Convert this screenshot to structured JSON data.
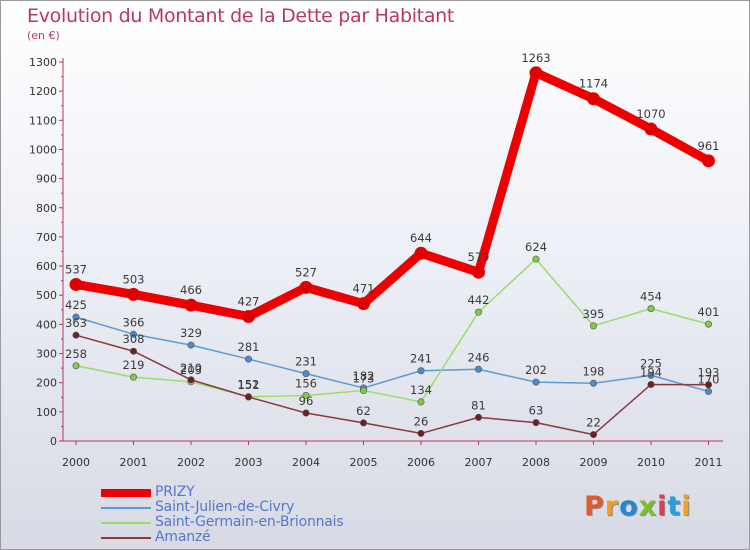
{
  "title": "Evolution du Montant de la Dette par Habitant",
  "subtitle": "(en €)",
  "logo": {
    "text": "Proxiti",
    "letter_colors": [
      "#e05a2b",
      "#f0a020",
      "#1f8ad0",
      "#7cbf2e",
      "#e03a55",
      "#2a9fd6",
      "#f0a020"
    ]
  },
  "chart_data": {
    "type": "line",
    "title": "Evolution du Montant de la Dette par Habitant",
    "subtitle": "(en €)",
    "xlabel": "",
    "ylabel": "",
    "categories": [
      "2000",
      "2001",
      "2002",
      "2003",
      "2004",
      "2005",
      "2006",
      "2007",
      "2008",
      "2009",
      "2010",
      "2011"
    ],
    "ylim": [
      0,
      1300
    ],
    "yticks": [
      "0",
      "100",
      "200",
      "300",
      "400",
      "500",
      "600",
      "700",
      "800",
      "900",
      "1000",
      "1100",
      "1200",
      "1300"
    ],
    "grid": false,
    "legend_position": "bottom-left",
    "series": [
      {
        "name": "PRIZY",
        "color": "#ee0000",
        "marker_color": "#dd0000",
        "emphasis": true,
        "values": [
          537,
          503,
          466,
          427,
          527,
          471,
          644,
          579,
          1263,
          1174,
          1070,
          961
        ],
        "labels": [
          "537",
          "503",
          "466",
          "427",
          "527",
          "471",
          "644",
          "579",
          "1263",
          "1174",
          "1070",
          "961"
        ]
      },
      {
        "name": "Saint-Julien-de-Civry",
        "color": "#5b9bd5",
        "marker_color": "#4a8ccf",
        "emphasis": false,
        "values": [
          425,
          366,
          329,
          281,
          231,
          182,
          241,
          246,
          202,
          198,
          225,
          170
        ],
        "labels": [
          "425",
          "366",
          "329",
          "281",
          "231",
          "182",
          "241",
          "246",
          "202",
          "198",
          "225",
          "170"
        ]
      },
      {
        "name": "Saint-Germain-en-Brionnais",
        "color": "#99dd66",
        "marker_color": "#7fcc44",
        "emphasis": false,
        "values": [
          258,
          219,
          203,
          152,
          156,
          173,
          134,
          442,
          624,
          395,
          454,
          401
        ],
        "labels": [
          "258",
          "219",
          "203",
          "152",
          "156",
          "173",
          "134",
          "442",
          "624",
          "395",
          "454",
          "401"
        ]
      },
      {
        "name": "Amanzé",
        "color": "#8b3a3a",
        "marker_color": "#6e1f1f",
        "emphasis": false,
        "values": [
          363,
          308,
          210,
          151,
          96,
          62,
          26,
          81,
          63,
          22,
          194,
          193
        ],
        "labels": [
          "363",
          "308",
          "210",
          "151",
          "96",
          "62",
          "26",
          "81",
          "63",
          "22",
          "194",
          "193"
        ]
      }
    ]
  }
}
